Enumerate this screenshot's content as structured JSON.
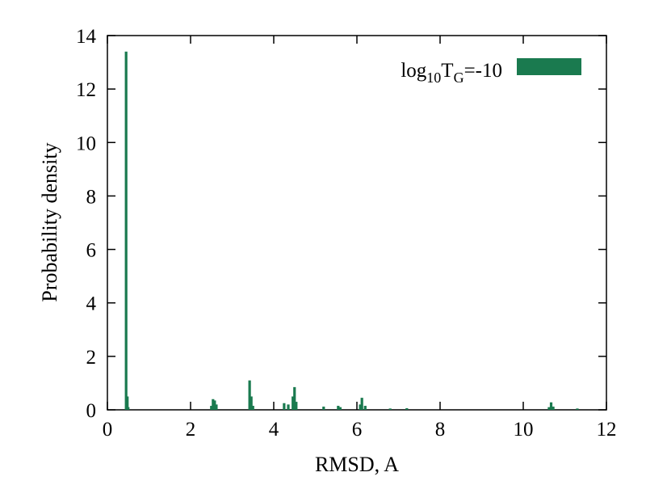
{
  "chart_data": {
    "type": "bar",
    "xlabel": "RMSD, A",
    "ylabel": "Probability density",
    "xlim": [
      0,
      12
    ],
    "ylim": [
      0,
      14
    ],
    "xticks": [
      0,
      2,
      4,
      6,
      8,
      10,
      12
    ],
    "yticks": [
      0,
      2,
      4,
      6,
      8,
      10,
      12,
      14
    ],
    "grid": false,
    "legend_position": "top-right",
    "series": [
      {
        "name": "log10TG=-10",
        "legend": {
          "base": "log",
          "sub1": "10",
          "mid": "T",
          "sub2": "G",
          "tail": "=-10"
        },
        "color": "#1a7a4f",
        "x": [
          0.45,
          0.48,
          0.5,
          2.5,
          2.54,
          2.58,
          2.62,
          3.42,
          3.46,
          3.5,
          4.25,
          4.35,
          4.46,
          4.5,
          4.54,
          5.2,
          5.55,
          5.6,
          6.08,
          6.12,
          6.2,
          6.8,
          7.2,
          10.62,
          10.67,
          10.72,
          11.3
        ],
        "values": [
          13.4,
          0.5,
          0.1,
          0.15,
          0.4,
          0.35,
          0.2,
          1.1,
          0.5,
          0.15,
          0.25,
          0.2,
          0.5,
          0.85,
          0.3,
          0.12,
          0.15,
          0.1,
          0.2,
          0.45,
          0.15,
          0.05,
          0.06,
          0.1,
          0.28,
          0.12,
          0.05
        ]
      }
    ]
  }
}
